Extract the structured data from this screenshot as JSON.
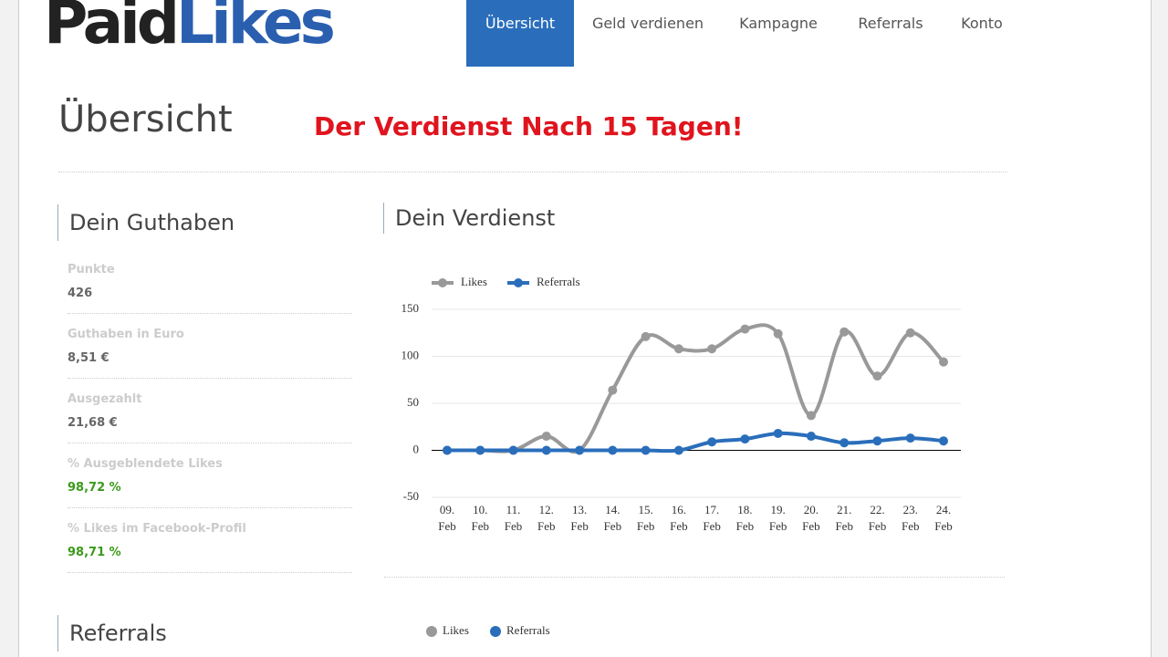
{
  "logo": {
    "first": "Paid",
    "second": "Likes"
  },
  "nav": [
    "Übersicht",
    "Geld verdienen",
    "Kampagne",
    "Referrals",
    "Konto"
  ],
  "page_title": "Übersicht",
  "banner": "Der Verdienst Nach 15 Tagen!",
  "balance": {
    "title": "Dein Guthaben",
    "items": [
      {
        "label": "Punkte",
        "value": "426"
      },
      {
        "label": "Guthaben in Euro",
        "value": "8,51 €"
      },
      {
        "label": "Ausgezahlt",
        "value": "21,68 €"
      },
      {
        "label": "% Ausgeblendete Likes",
        "value": "98,72 %"
      },
      {
        "label": "% Likes im Facebook-Profil",
        "value": "98,71 %"
      }
    ]
  },
  "chart_data": {
    "type": "line",
    "title": "Dein Verdienst",
    "categories": [
      "09. Feb",
      "10. Feb",
      "11. Feb",
      "12. Feb",
      "13. Feb",
      "14. Feb",
      "15. Feb",
      "16. Feb",
      "17. Feb",
      "18. Feb",
      "19. Feb",
      "20. Feb",
      "21. Feb",
      "22. Feb",
      "23. Feb",
      "24. Feb"
    ],
    "series": [
      {
        "name": "Likes",
        "color": "#999999",
        "values": [
          0,
          0,
          0,
          15,
          0,
          64,
          121,
          108,
          108,
          129,
          124,
          37,
          126,
          79,
          125,
          94
        ]
      },
      {
        "name": "Referrals",
        "color": "#2a6ebb",
        "values": [
          0,
          0,
          0,
          0,
          0,
          0,
          0,
          0,
          9,
          12,
          18,
          15,
          8,
          10,
          13,
          10
        ]
      }
    ],
    "ylim": [
      -50,
      150
    ],
    "yticks": [
      -50,
      0,
      50,
      100,
      150
    ],
    "grid": true,
    "legend": "top-left"
  },
  "referrals": {
    "title": "Referrals",
    "legend": [
      "Likes",
      "Referrals"
    ]
  }
}
